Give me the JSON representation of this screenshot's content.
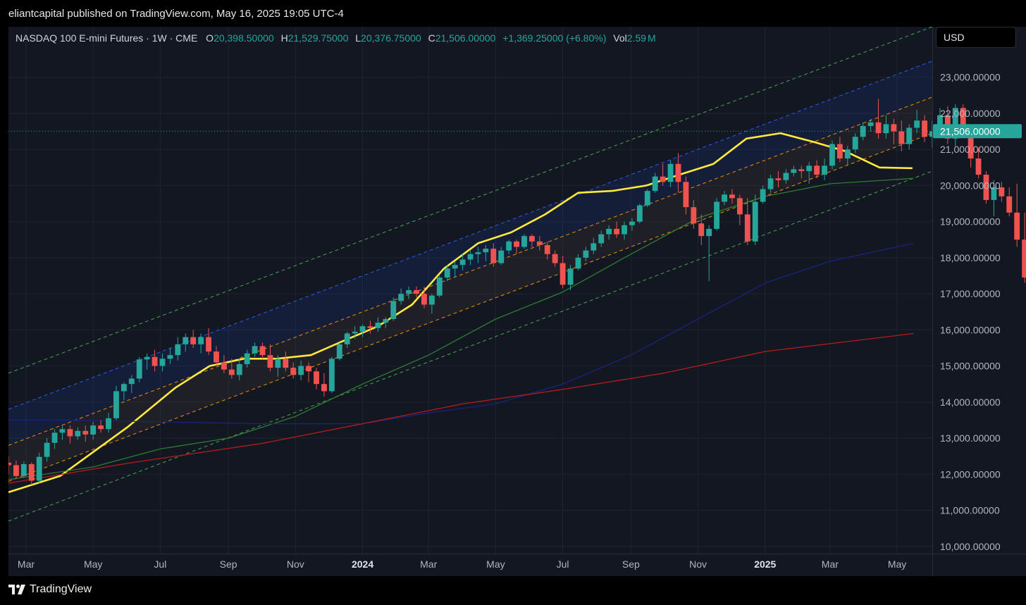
{
  "header": {
    "publisher": "eliantcapital published on TradingView.com, May 16, 2025 19:05 UTC-4"
  },
  "legend": {
    "symbol": "NASDAQ 100 E-mini Futures · 1W · CME",
    "open_label": "O",
    "open": "20,398.50000",
    "high_label": "H",
    "high": "21,529.75000",
    "low_label": "L",
    "low": "20,376.75000",
    "close_label": "C",
    "close": "21,506.00000",
    "change": "+1,369.25000 (+6.80%)",
    "vol_label": "Vol",
    "vol": "2.59",
    "vol_unit": "M"
  },
  "currency": "USD",
  "footer": {
    "brand": "TradingView"
  },
  "colors": {
    "up": "#26a69a",
    "down": "#ef5350",
    "background": "#131722",
    "ma_yellow": "#ffeb3b",
    "ma_green": "#2e7d32",
    "ma_navy": "#1a237e",
    "ma_red": "#b71c1c",
    "channel_green": "#4caf50",
    "channel_blue": "#2962ff",
    "channel_orange": "#ff9800"
  },
  "chart_data": {
    "type": "candlestick",
    "interval": "1W",
    "y_scale": "linear",
    "ylim": [
      9800,
      24400
    ],
    "y_ticks": [
      10000,
      11000,
      12000,
      13000,
      14000,
      15000,
      16000,
      17000,
      18000,
      19000,
      20000,
      21000,
      22000,
      23000
    ],
    "y_tick_labels": [
      "10,000.00000",
      "11,000.00000",
      "12,000.00000",
      "13,000.00000",
      "14,000.00000",
      "15,000.00000",
      "16,000.00000",
      "17,000.00000",
      "18,000.00000",
      "19,000.00000",
      "20,000.00000",
      "21,000.00000",
      "22,000.00000",
      "23,000.00000"
    ],
    "x_range": [
      "2023-02-13",
      "2025-06-02"
    ],
    "x_ticks": [
      {
        "date": "2023-03-01",
        "label": "Mar",
        "bold": false
      },
      {
        "date": "2023-05-01",
        "label": "May",
        "bold": false
      },
      {
        "date": "2023-07-01",
        "label": "Jul",
        "bold": false
      },
      {
        "date": "2023-09-01",
        "label": "Sep",
        "bold": false
      },
      {
        "date": "2023-11-01",
        "label": "Nov",
        "bold": false
      },
      {
        "date": "2024-01-01",
        "label": "2024",
        "bold": true
      },
      {
        "date": "2024-03-01",
        "label": "Mar",
        "bold": false
      },
      {
        "date": "2024-05-01",
        "label": "May",
        "bold": false
      },
      {
        "date": "2024-07-01",
        "label": "Jul",
        "bold": false
      },
      {
        "date": "2024-09-01",
        "label": "Sep",
        "bold": false
      },
      {
        "date": "2024-11-01",
        "label": "Nov",
        "bold": false
      },
      {
        "date": "2025-01-01",
        "label": "2025",
        "bold": true
      },
      {
        "date": "2025-03-01",
        "label": "Mar",
        "bold": false
      },
      {
        "date": "2025-05-01",
        "label": "May",
        "bold": false
      }
    ],
    "last_price": 21506,
    "last_price_label": "21,506.00000",
    "candle_start_week": "2023-02-13",
    "candles": [
      [
        12320,
        12500,
        12000,
        12250
      ],
      [
        12250,
        12380,
        11880,
        11950
      ],
      [
        11950,
        12350,
        11900,
        12280
      ],
      [
        12280,
        12330,
        11700,
        11820
      ],
      [
        11820,
        12600,
        11750,
        12480
      ],
      [
        12480,
        13000,
        12350,
        12870
      ],
      [
        12870,
        13250,
        12700,
        13150
      ],
      [
        13150,
        13350,
        12950,
        13250
      ],
      [
        13250,
        13350,
        12850,
        13050
      ],
      [
        13050,
        13300,
        12950,
        13200
      ],
      [
        13200,
        13350,
        12900,
        13100
      ],
      [
        13100,
        13450,
        12950,
        13350
      ],
      [
        13350,
        13500,
        13150,
        13250
      ],
      [
        13250,
        13700,
        13150,
        13550
      ],
      [
        13550,
        14450,
        13500,
        14300
      ],
      [
        14300,
        14550,
        14050,
        14500
      ],
      [
        14500,
        14750,
        14250,
        14650
      ],
      [
        14650,
        15250,
        14550,
        15180
      ],
      [
        15180,
        15350,
        14900,
        15250
      ],
      [
        15250,
        15450,
        14850,
        15000
      ],
      [
        15000,
        15350,
        14850,
        15200
      ],
      [
        15200,
        15500,
        15050,
        15300
      ],
      [
        15300,
        15800,
        15150,
        15600
      ],
      [
        15600,
        15900,
        15400,
        15800
      ],
      [
        15800,
        16000,
        15500,
        15600
      ],
      [
        15600,
        15900,
        15350,
        15800
      ],
      [
        15800,
        16050,
        15300,
        15400
      ],
      [
        15400,
        15550,
        15000,
        15100
      ],
      [
        15100,
        15300,
        14800,
        14900
      ],
      [
        14900,
        15200,
        14650,
        14750
      ],
      [
        14750,
        15200,
        14600,
        15050
      ],
      [
        15050,
        15450,
        14950,
        15350
      ],
      [
        15350,
        15650,
        15250,
        15550
      ],
      [
        15550,
        15650,
        15200,
        15300
      ],
      [
        15300,
        15600,
        14850,
        14950
      ],
      [
        14950,
        15300,
        14700,
        15200
      ],
      [
        15200,
        15400,
        14850,
        14950
      ],
      [
        14950,
        15100,
        14650,
        14750
      ],
      [
        14750,
        15150,
        14600,
        15000
      ],
      [
        15000,
        15100,
        14550,
        14850
      ],
      [
        14850,
        14950,
        14350,
        14500
      ],
      [
        14500,
        14800,
        14150,
        14300
      ],
      [
        14300,
        15250,
        14250,
        15200
      ],
      [
        15200,
        15650,
        15150,
        15600
      ],
      [
        15600,
        15950,
        15500,
        15900
      ],
      [
        15900,
        16100,
        15750,
        15950
      ],
      [
        15950,
        16150,
        15800,
        16100
      ],
      [
        16100,
        16250,
        15900,
        16050
      ],
      [
        16050,
        16350,
        15950,
        16200
      ],
      [
        16200,
        16350,
        16050,
        16300
      ],
      [
        16300,
        16900,
        16250,
        16800
      ],
      [
        16800,
        17150,
        16700,
        17000
      ],
      [
        17000,
        17200,
        16850,
        17100
      ],
      [
        17100,
        17200,
        16900,
        17000
      ],
      [
        17000,
        17200,
        16600,
        16700
      ],
      [
        16700,
        17000,
        16450,
        16950
      ],
      [
        16950,
        17500,
        16900,
        17450
      ],
      [
        17450,
        17800,
        17350,
        17700
      ],
      [
        17700,
        17900,
        17450,
        17800
      ],
      [
        17800,
        18100,
        17650,
        17950
      ],
      [
        17950,
        18200,
        17800,
        18100
      ],
      [
        18100,
        18300,
        17850,
        18150
      ],
      [
        18150,
        18350,
        17900,
        18250
      ],
      [
        18250,
        18400,
        17750,
        17850
      ],
      [
        17850,
        18300,
        17800,
        18200
      ],
      [
        18200,
        18500,
        18100,
        18450
      ],
      [
        18450,
        18500,
        18100,
        18300
      ],
      [
        18300,
        18650,
        18250,
        18600
      ],
      [
        18600,
        18650,
        18300,
        18450
      ],
      [
        18450,
        18600,
        18200,
        18350
      ],
      [
        18350,
        18450,
        17950,
        18100
      ],
      [
        18100,
        18200,
        17750,
        17850
      ],
      [
        17850,
        18050,
        17150,
        17250
      ],
      [
        17250,
        17800,
        17100,
        17700
      ],
      [
        17700,
        18100,
        17650,
        18000
      ],
      [
        18000,
        18300,
        17900,
        18200
      ],
      [
        18200,
        18550,
        18100,
        18400
      ],
      [
        18400,
        18750,
        18300,
        18650
      ],
      [
        18650,
        18900,
        18500,
        18800
      ],
      [
        18800,
        19000,
        18550,
        18650
      ],
      [
        18650,
        19000,
        18500,
        18900
      ],
      [
        18900,
        19100,
        18750,
        19000
      ],
      [
        19000,
        19500,
        18950,
        19450
      ],
      [
        19450,
        19900,
        19400,
        19850
      ],
      [
        19850,
        20350,
        19800,
        20250
      ],
      [
        20250,
        20600,
        20000,
        20100
      ],
      [
        20100,
        20700,
        19950,
        20600
      ],
      [
        20600,
        20900,
        19800,
        20100
      ],
      [
        20100,
        20250,
        19200,
        19400
      ],
      [
        19400,
        19600,
        18800,
        18950
      ],
      [
        18950,
        19200,
        18350,
        18600
      ],
      [
        18600,
        18900,
        17350,
        18800
      ],
      [
        18800,
        19650,
        18750,
        19550
      ],
      [
        19550,
        19850,
        19450,
        19750
      ],
      [
        19750,
        19900,
        19500,
        19650
      ],
      [
        19650,
        19750,
        18900,
        19200
      ],
      [
        19200,
        19650,
        18350,
        18450
      ],
      [
        18450,
        19750,
        18350,
        19550
      ],
      [
        19550,
        20000,
        19500,
        19900
      ],
      [
        19900,
        20300,
        19800,
        20200
      ],
      [
        20200,
        20400,
        19950,
        20150
      ],
      [
        20150,
        20450,
        20050,
        20350
      ],
      [
        20350,
        20550,
        20250,
        20450
      ],
      [
        20450,
        20550,
        20200,
        20400
      ],
      [
        20400,
        20650,
        20050,
        20550
      ],
      [
        20550,
        20700,
        20200,
        20300
      ],
      [
        20300,
        20750,
        20150,
        20550
      ],
      [
        20550,
        21250,
        20450,
        21150
      ],
      [
        21150,
        21350,
        20650,
        20750
      ],
      [
        20750,
        21100,
        20550,
        21000
      ],
      [
        21000,
        21450,
        20900,
        21350
      ],
      [
        21350,
        21750,
        21250,
        21650
      ],
      [
        21650,
        21850,
        21500,
        21750
      ],
      [
        21750,
        22400,
        21300,
        21450
      ],
      [
        21450,
        21950,
        21300,
        21700
      ],
      [
        21700,
        21850,
        21150,
        21500
      ],
      [
        21500,
        21800,
        20950,
        21150
      ],
      [
        21150,
        21700,
        21000,
        21600
      ],
      [
        21600,
        22100,
        21450,
        21800
      ],
      [
        21800,
        21950,
        21200,
        21350
      ],
      [
        21350,
        21800,
        21050,
        21500
      ],
      [
        21500,
        22150,
        21350,
        21950
      ],
      [
        21950,
        22200,
        21150,
        21300
      ],
      [
        21300,
        22250,
        21100,
        22150
      ],
      [
        22150,
        22250,
        21450,
        21550
      ],
      [
        21550,
        21650,
        20500,
        20750
      ],
      [
        20750,
        21050,
        20200,
        20300
      ],
      [
        20300,
        20400,
        19500,
        19600
      ],
      [
        19600,
        20150,
        19150,
        19950
      ],
      [
        19950,
        20100,
        19550,
        19700
      ],
      [
        19700,
        19950,
        19150,
        19250
      ],
      [
        19250,
        20050,
        18300,
        18500
      ],
      [
        18500,
        19250,
        17300,
        17450
      ],
      [
        17450,
        19400,
        16450,
        19000
      ],
      [
        19000,
        19800,
        18150,
        18450
      ],
      [
        18450,
        19550,
        18300,
        19400
      ],
      [
        19400,
        20050,
        19050,
        19900
      ],
      [
        19900,
        20200,
        19600,
        20200
      ],
      [
        20200,
        20350,
        19650,
        20150
      ],
      [
        20398.5,
        21529.75,
        20376.75,
        21506
      ]
    ],
    "series": [
      {
        "type": "line",
        "color": "#ffeb3b",
        "points": [
          [
            "2023-02-13",
            11500
          ],
          [
            "2023-04-01",
            11950
          ],
          [
            "2023-06-01",
            13300
          ],
          [
            "2023-07-15",
            14400
          ],
          [
            "2023-08-15",
            15000
          ],
          [
            "2023-09-15",
            15200
          ],
          [
            "2023-10-15",
            15200
          ],
          [
            "2023-11-15",
            15300
          ],
          [
            "2023-12-15",
            15700
          ],
          [
            "2024-01-15",
            16100
          ],
          [
            "2024-02-15",
            16700
          ],
          [
            "2024-03-15",
            17700
          ],
          [
            "2024-04-15",
            18400
          ],
          [
            "2024-05-15",
            18700
          ],
          [
            "2024-06-15",
            19200
          ],
          [
            "2024-07-15",
            19800
          ],
          [
            "2024-08-15",
            19850
          ],
          [
            "2024-09-15",
            20000
          ],
          [
            "2024-10-15",
            20300
          ],
          [
            "2024-11-15",
            20600
          ],
          [
            "2024-12-15",
            21300
          ],
          [
            "2025-01-15",
            21450
          ],
          [
            "2025-02-15",
            21200
          ],
          [
            "2025-03-15",
            20950
          ],
          [
            "2025-04-15",
            20500
          ],
          [
            "2025-05-15",
            20480
          ]
        ]
      },
      {
        "type": "line",
        "color": "#2e7d32",
        "points": [
          [
            "2023-02-13",
            11850
          ],
          [
            "2023-05-01",
            12200
          ],
          [
            "2023-07-01",
            12700
          ],
          [
            "2023-09-01",
            13000
          ],
          [
            "2023-11-01",
            13600
          ],
          [
            "2024-01-01",
            14500
          ],
          [
            "2024-03-01",
            15300
          ],
          [
            "2024-05-01",
            16300
          ],
          [
            "2024-07-01",
            17050
          ],
          [
            "2024-09-01",
            18100
          ],
          [
            "2024-11-01",
            19100
          ],
          [
            "2025-01-01",
            19700
          ],
          [
            "2025-03-01",
            20050
          ],
          [
            "2025-05-16",
            20200
          ]
        ]
      },
      {
        "type": "line",
        "color": "#1a237e",
        "points": [
          [
            "2023-02-13",
            13500
          ],
          [
            "2023-04-01",
            13500
          ],
          [
            "2023-07-01",
            13450
          ],
          [
            "2023-10-01",
            13400
          ],
          [
            "2024-01-01",
            13400
          ],
          [
            "2024-03-01",
            13700
          ],
          [
            "2024-05-01",
            13950
          ],
          [
            "2024-07-01",
            14500
          ],
          [
            "2024-09-01",
            15300
          ],
          [
            "2024-11-01",
            16300
          ],
          [
            "2025-01-01",
            17300
          ],
          [
            "2025-03-01",
            17900
          ],
          [
            "2025-05-16",
            18400
          ]
        ]
      },
      {
        "type": "line",
        "color": "#b71c1c",
        "points": [
          [
            "2023-02-13",
            11750
          ],
          [
            "2023-06-01",
            12300
          ],
          [
            "2023-10-01",
            12850
          ],
          [
            "2024-01-01",
            13400
          ],
          [
            "2024-04-01",
            13950
          ],
          [
            "2024-07-01",
            14350
          ],
          [
            "2024-10-01",
            14800
          ],
          [
            "2025-01-01",
            15400
          ],
          [
            "2025-05-16",
            15900
          ]
        ]
      }
    ],
    "channel_lines": [
      {
        "color": "#4caf50",
        "from": [
          "2023-02-13",
          14800
        ],
        "to": [
          "2025-06-02",
          24400
        ]
      },
      {
        "color": "#2962ff",
        "from": [
          "2023-02-13",
          13800
        ],
        "to": [
          "2025-06-02",
          23450
        ]
      },
      {
        "color": "#ff9800",
        "from": [
          "2023-02-13",
          12800
        ],
        "to": [
          "2025-06-02",
          22450
        ]
      },
      {
        "color": "#ff9800",
        "from": [
          "2023-02-13",
          11800
        ],
        "to": [
          "2025-06-02",
          21450
        ]
      },
      {
        "color": "#4caf50",
        "from": [
          "2023-02-13",
          10700
        ],
        "to": [
          "2025-06-02",
          20400
        ]
      }
    ]
  }
}
